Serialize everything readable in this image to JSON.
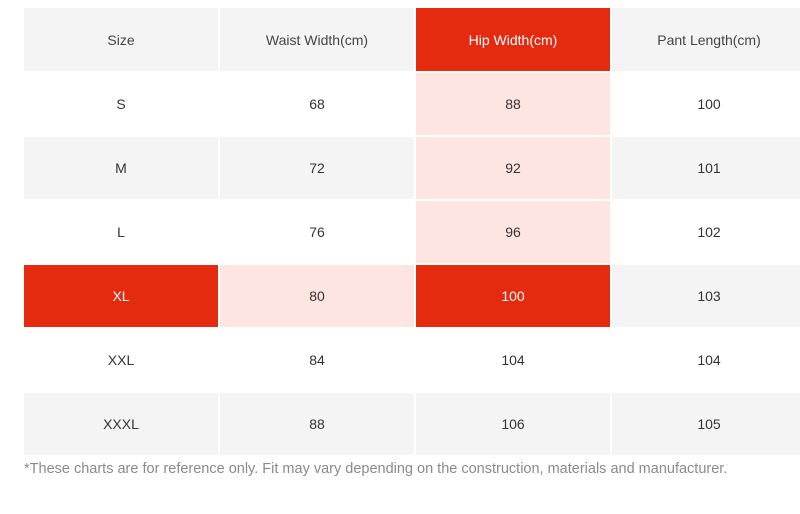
{
  "colors": {
    "highlight": "#e42a0f",
    "highlight_light": "#fde6e2",
    "grey_row": "#f4f4f4",
    "white_row": "#ffffff"
  },
  "table": {
    "headers": [
      "Size",
      "Waist Width(cm)",
      "Hip Width(cm)",
      "Pant Length(cm)"
    ],
    "rows": [
      [
        "S",
        "68",
        "88",
        "100"
      ],
      [
        "M",
        "72",
        "92",
        "101"
      ],
      [
        "L",
        "76",
        "96",
        "102"
      ],
      [
        "XL",
        "80",
        "100",
        "103"
      ],
      [
        "XXL",
        "84",
        "104",
        "104"
      ],
      [
        "XXXL",
        "88",
        "106",
        "105"
      ]
    ]
  },
  "footnote": "*These charts are for reference only. Fit may vary depending on the construction, materials and manufacturer."
}
